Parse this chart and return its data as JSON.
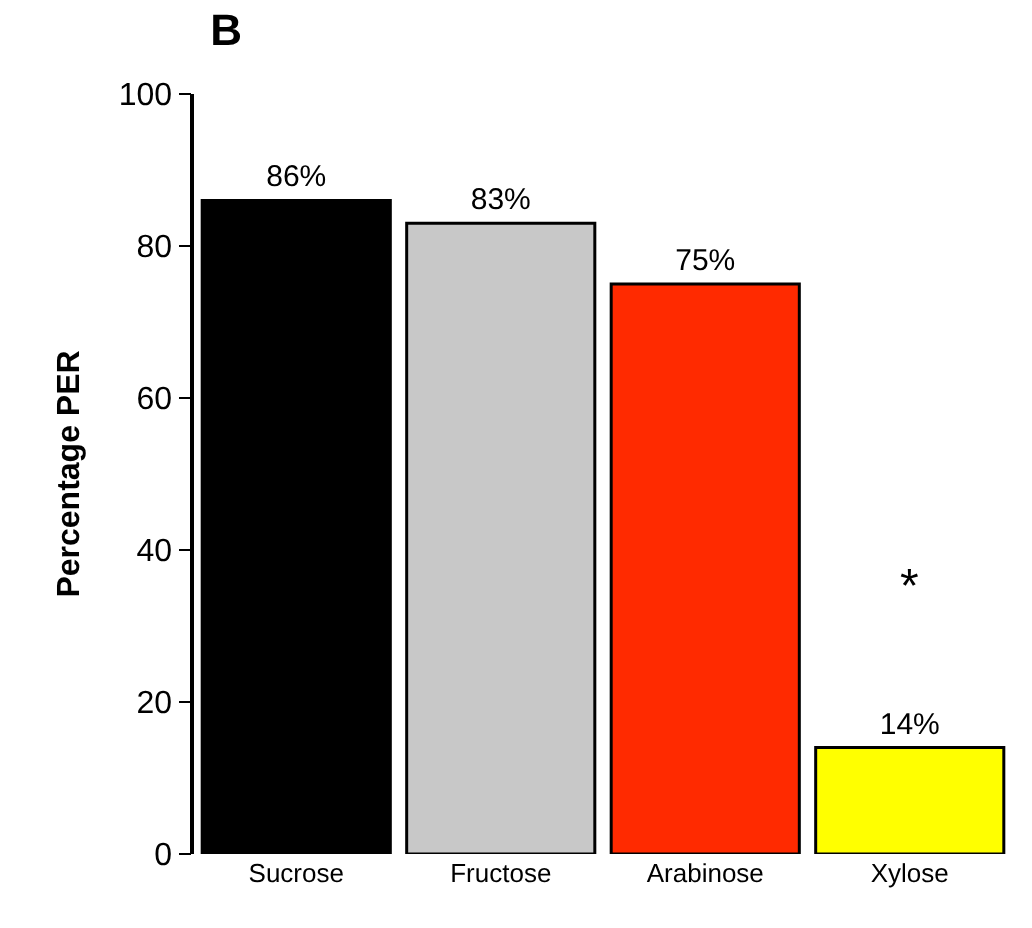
{
  "chart_data": {
    "type": "bar",
    "title": "B",
    "ylabel": "Percentage PER",
    "categories": [
      "Sucrose",
      "Fructose",
      "Arabinose",
      "Xylose"
    ],
    "values": [
      86,
      83,
      75,
      14
    ],
    "colors": [
      "#000000",
      "#c8c8c8",
      "#ff2a00",
      "#ffff00"
    ],
    "value_labels": [
      "86%",
      "83%",
      "75%",
      "14%"
    ],
    "ylim": [
      0,
      100
    ],
    "yticks": [
      0,
      20,
      40,
      60,
      80,
      100
    ],
    "annotations": [
      "*"
    ]
  }
}
